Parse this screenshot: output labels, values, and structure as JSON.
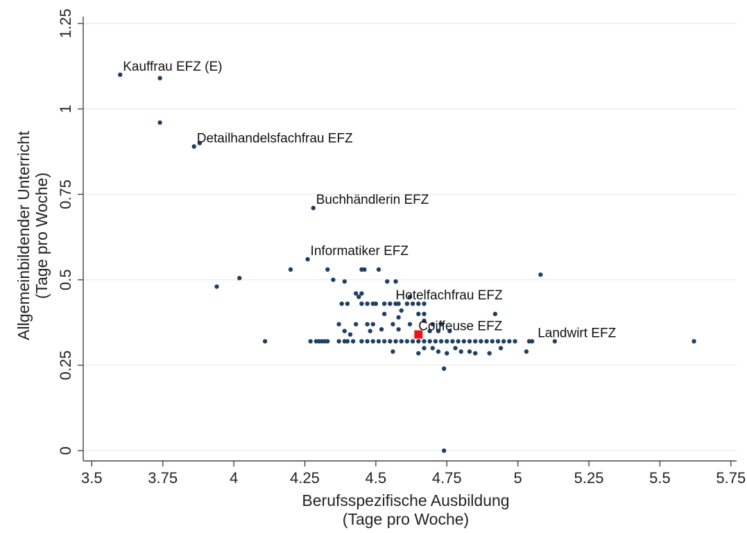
{
  "chart_data": {
    "type": "scatter",
    "xlabel": [
      "Berufsspezifische Ausbildung",
      "(Tage pro Woche)"
    ],
    "ylabel": [
      "Allgemeinbildender Unterricht",
      "(Tage pro Woche)"
    ],
    "xlim": [
      3.47,
      5.77
    ],
    "ylim": [
      -0.03,
      1.27
    ],
    "x_ticks": [
      "3.5",
      "3.75",
      "4",
      "4.25",
      "4.5",
      "4.75",
      "5",
      "5.25",
      "5.5",
      "5.75"
    ],
    "y_ticks": [
      "0",
      "0.25",
      "0.5",
      "0.75",
      "1",
      "1.25"
    ],
    "grid": "horizontal",
    "colors": {
      "points": "#1f3f63",
      "highlight": "#e8161b",
      "grid": "#e3ebef",
      "axis": "#444444"
    },
    "labels": [
      {
        "text": "Kauffrau EFZ (E)",
        "x": 3.6,
        "y": 1.1
      },
      {
        "text": "Detailhandelsfachfrau EFZ",
        "x": 3.86,
        "y": 0.89
      },
      {
        "text": "Buchhändlerin EFZ",
        "x": 4.28,
        "y": 0.71
      },
      {
        "text": "Informatiker EFZ",
        "x": 4.26,
        "y": 0.56
      },
      {
        "text": "Hotelfachfrau EFZ",
        "x": 4.56,
        "y": 0.43
      },
      {
        "text": "Coiffeuse EFZ",
        "x": 4.64,
        "y": 0.34
      },
      {
        "text": "Landwirt EFZ",
        "x": 5.06,
        "y": 0.32
      }
    ],
    "highlight": {
      "x": 4.65,
      "y": 0.34
    },
    "points": [
      [
        3.6,
        1.1
      ],
      [
        3.74,
        1.09
      ],
      [
        3.74,
        0.96
      ],
      [
        3.86,
        0.89
      ],
      [
        3.88,
        0.9
      ],
      [
        4.28,
        0.71
      ],
      [
        3.94,
        0.48
      ],
      [
        4.02,
        0.505
      ],
      [
        4.11,
        0.32
      ],
      [
        4.2,
        0.53
      ],
      [
        4.26,
        0.56
      ],
      [
        4.33,
        0.53
      ],
      [
        4.35,
        0.5
      ],
      [
        4.39,
        0.495
      ],
      [
        4.45,
        0.53
      ],
      [
        4.46,
        0.53
      ],
      [
        4.51,
        0.53
      ],
      [
        4.54,
        0.495
      ],
      [
        4.57,
        0.495
      ],
      [
        4.43,
        0.46
      ],
      [
        4.44,
        0.45
      ],
      [
        4.45,
        0.46
      ],
      [
        4.38,
        0.43
      ],
      [
        4.4,
        0.43
      ],
      [
        4.45,
        0.43
      ],
      [
        4.47,
        0.43
      ],
      [
        4.49,
        0.43
      ],
      [
        4.5,
        0.43
      ],
      [
        4.53,
        0.43
      ],
      [
        4.55,
        0.43
      ],
      [
        4.57,
        0.43
      ],
      [
        4.58,
        0.43
      ],
      [
        4.61,
        0.43
      ],
      [
        4.63,
        0.43
      ],
      [
        4.65,
        0.43
      ],
      [
        4.67,
        0.43
      ],
      [
        4.62,
        0.45
      ],
      [
        4.92,
        0.4
      ],
      [
        4.53,
        0.4
      ],
      [
        4.59,
        0.41
      ],
      [
        4.58,
        0.39
      ],
      [
        4.65,
        0.4
      ],
      [
        4.67,
        0.4
      ],
      [
        4.37,
        0.37
      ],
      [
        4.43,
        0.37
      ],
      [
        4.47,
        0.37
      ],
      [
        4.49,
        0.37
      ],
      [
        4.56,
        0.37
      ],
      [
        4.62,
        0.37
      ],
      [
        4.67,
        0.38
      ],
      [
        4.7,
        0.37
      ],
      [
        4.73,
        0.37
      ],
      [
        4.39,
        0.35
      ],
      [
        4.41,
        0.34
      ],
      [
        4.48,
        0.35
      ],
      [
        4.52,
        0.355
      ],
      [
        4.58,
        0.355
      ],
      [
        4.69,
        0.35
      ],
      [
        4.72,
        0.35
      ],
      [
        4.76,
        0.35
      ],
      [
        4.27,
        0.32
      ],
      [
        4.29,
        0.32
      ],
      [
        4.3,
        0.32
      ],
      [
        4.31,
        0.32
      ],
      [
        4.32,
        0.32
      ],
      [
        4.33,
        0.32
      ],
      [
        4.37,
        0.32
      ],
      [
        4.39,
        0.32
      ],
      [
        4.4,
        0.32
      ],
      [
        4.42,
        0.32
      ],
      [
        4.45,
        0.32
      ],
      [
        4.47,
        0.32
      ],
      [
        4.49,
        0.32
      ],
      [
        4.51,
        0.32
      ],
      [
        4.53,
        0.32
      ],
      [
        4.55,
        0.32
      ],
      [
        4.57,
        0.32
      ],
      [
        4.59,
        0.32
      ],
      [
        4.61,
        0.32
      ],
      [
        4.63,
        0.32
      ],
      [
        4.65,
        0.32
      ],
      [
        4.67,
        0.32
      ],
      [
        4.69,
        0.32
      ],
      [
        4.71,
        0.32
      ],
      [
        4.73,
        0.32
      ],
      [
        4.75,
        0.32
      ],
      [
        4.77,
        0.32
      ],
      [
        4.79,
        0.32
      ],
      [
        4.81,
        0.32
      ],
      [
        4.83,
        0.32
      ],
      [
        4.85,
        0.32
      ],
      [
        4.87,
        0.32
      ],
      [
        4.89,
        0.32
      ],
      [
        4.91,
        0.32
      ],
      [
        4.93,
        0.32
      ],
      [
        4.95,
        0.32
      ],
      [
        4.97,
        0.32
      ],
      [
        4.99,
        0.32
      ],
      [
        5.04,
        0.32
      ],
      [
        5.05,
        0.32
      ],
      [
        5.13,
        0.32
      ],
      [
        5.62,
        0.32
      ],
      [
        4.56,
        0.29
      ],
      [
        4.65,
        0.285
      ],
      [
        4.67,
        0.3
      ],
      [
        4.7,
        0.3
      ],
      [
        4.72,
        0.29
      ],
      [
        4.75,
        0.285
      ],
      [
        4.78,
        0.3
      ],
      [
        4.8,
        0.29
      ],
      [
        4.83,
        0.29
      ],
      [
        4.85,
        0.285
      ],
      [
        4.9,
        0.285
      ],
      [
        4.94,
        0.3
      ],
      [
        5.03,
        0.29
      ],
      [
        4.74,
        0.24
      ],
      [
        4.74,
        0.0
      ],
      [
        5.08,
        0.515
      ]
    ]
  }
}
